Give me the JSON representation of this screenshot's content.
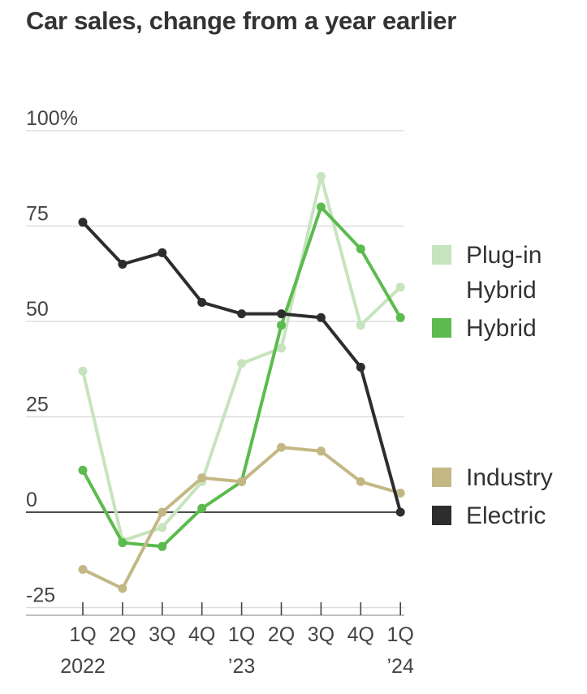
{
  "chart_data": {
    "type": "line",
    "title": "Car sales, change from a year earlier",
    "xlabel": "",
    "ylabel": "",
    "categories": [
      "1Q 2022",
      "2Q",
      "3Q",
      "4Q",
      "1Q ’23",
      "2Q",
      "3Q",
      "4Q",
      "1Q ’24"
    ],
    "x_tick_labels": [
      {
        "top": "1Q",
        "bottom": "2022"
      },
      {
        "top": "2Q",
        "bottom": ""
      },
      {
        "top": "3Q",
        "bottom": ""
      },
      {
        "top": "4Q",
        "bottom": ""
      },
      {
        "top": "1Q",
        "bottom": "’23"
      },
      {
        "top": "2Q",
        "bottom": ""
      },
      {
        "top": "3Q",
        "bottom": ""
      },
      {
        "top": "4Q",
        "bottom": ""
      },
      {
        "top": "1Q",
        "bottom": "’24"
      }
    ],
    "ylim": [
      -30,
      100
    ],
    "y_ticks": [
      {
        "value": 100,
        "label": "100%"
      },
      {
        "value": 75,
        "label": "75"
      },
      {
        "value": 50,
        "label": "50"
      },
      {
        "value": 25,
        "label": "25"
      },
      {
        "value": 0,
        "label": "0"
      },
      {
        "value": -25,
        "label": "-25"
      }
    ],
    "grid": true,
    "legend_position": "right",
    "series": [
      {
        "key": "plugin",
        "name": "Plug-in Hybrid",
        "color": "#c6e4bd",
        "values": [
          37,
          -7.5,
          -4,
          8,
          39,
          43,
          88,
          49,
          59
        ]
      },
      {
        "key": "hybrid",
        "name": "Hybrid",
        "color": "#5cbb4e",
        "values": [
          11,
          -8,
          -9,
          1,
          8,
          49,
          80,
          69,
          51
        ]
      },
      {
        "key": "industry",
        "name": "Industry",
        "color": "#c3b885",
        "values": [
          -15,
          -20,
          0,
          9,
          8,
          17,
          16,
          8,
          5
        ]
      },
      {
        "key": "electric",
        "name": "Electric",
        "color": "#2d2d2d",
        "values": [
          76,
          65,
          68,
          55,
          52,
          52,
          51,
          38,
          0
        ]
      }
    ],
    "legend": [
      {
        "lines": [
          "Plug-in",
          "Hybrid"
        ],
        "color": "#c6e4bd"
      },
      {
        "lines": [
          "Hybrid"
        ],
        "color": "#5cbb4e"
      },
      {
        "lines": [
          "Industry"
        ],
        "color": "#c3b885"
      },
      {
        "lines": [
          "Electric"
        ],
        "color": "#2d2d2d"
      }
    ]
  }
}
